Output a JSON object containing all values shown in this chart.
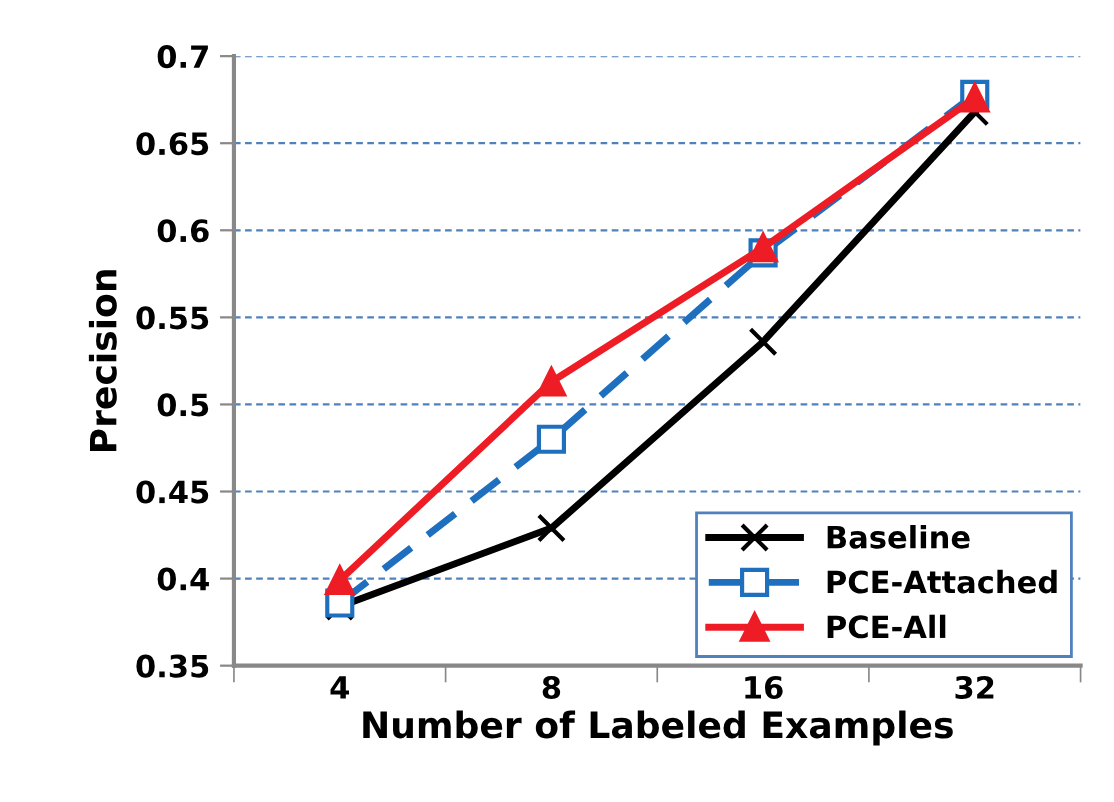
{
  "chart_data": {
    "type": "line",
    "xlabel": "Number of Labeled Examples",
    "ylabel": "Precision",
    "categories": [
      "4",
      "8",
      "16",
      "32"
    ],
    "series": [
      {
        "name": "Baseline",
        "color": "#000000",
        "values": [
          0.384,
          0.429,
          0.536,
          0.668
        ],
        "marker": "cross",
        "line_style": "solid"
      },
      {
        "name": "PCE-Attached",
        "color": "#1f6fbf",
        "values": [
          0.386,
          0.48,
          0.587,
          0.678
        ],
        "marker": "square",
        "line_style": "dashed"
      },
      {
        "name": "PCE-All",
        "color": "#ee1c25",
        "values": [
          0.399,
          0.513,
          0.59,
          0.676
        ],
        "marker": "triangle",
        "line_style": "solid"
      }
    ],
    "ylim": [
      0.35,
      0.7
    ],
    "yticks": [
      0.35,
      0.4,
      0.45,
      0.5,
      0.55,
      0.6,
      0.65,
      0.7
    ],
    "grid": "y",
    "legend": "bottom right"
  }
}
